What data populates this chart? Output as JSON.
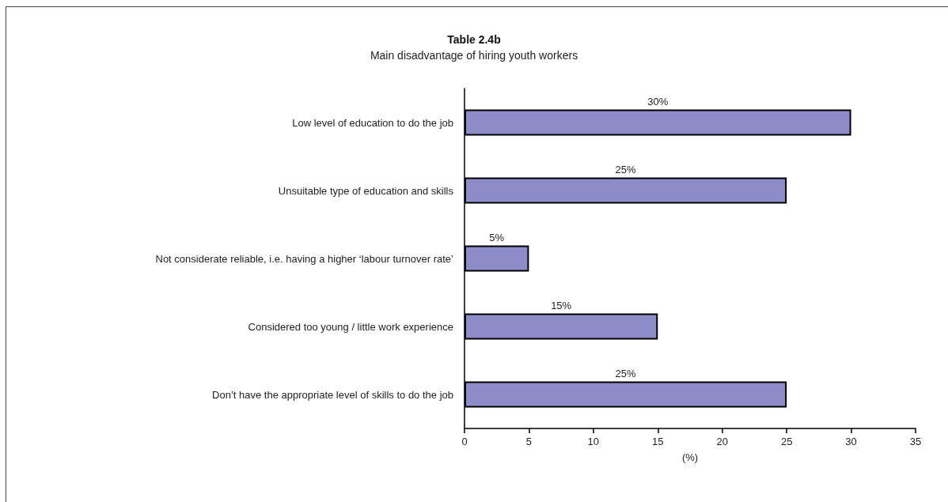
{
  "chart_data": {
    "type": "bar",
    "orientation": "horizontal",
    "title": "Table 2.4b",
    "subtitle": "Main disadvantage of hiring youth workers",
    "xlabel": "(%)",
    "categories": [
      "Low level of education to do the job",
      "Unsuitable type of education and skills",
      "Not considerate reliable, i.e. having a higher ‘labour turnover rate’",
      "Considered too young / little work experience",
      "Don’t have the appropriate level of skills to do the job"
    ],
    "values": [
      30,
      25,
      5,
      15,
      25
    ],
    "color": "#8c8cc8",
    "value_labels": [
      "30%",
      "25%",
      "5%",
      "15%",
      "25%"
    ],
    "xlim": [
      0,
      35
    ],
    "xticks": [
      0,
      5,
      10,
      15,
      20,
      25,
      30,
      35
    ]
  }
}
